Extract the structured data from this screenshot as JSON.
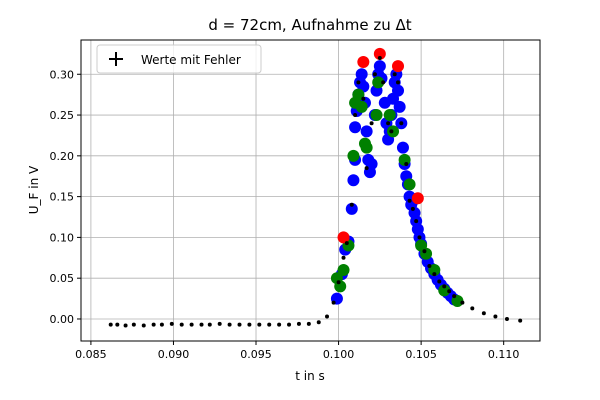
{
  "chart_data": {
    "type": "scatter",
    "title": "d = 72cm, Aufnahme zu Δt",
    "xlabel": "t in s",
    "ylabel": "U_F in V",
    "xlim": [
      0.0844,
      0.1122
    ],
    "ylim": [
      -0.027,
      0.342
    ],
    "xticks": [
      "0.085",
      "0.090",
      "0.095",
      "0.100",
      "0.105",
      "0.110"
    ],
    "xtick_values": [
      0.085,
      0.09,
      0.095,
      0.1,
      0.105,
      0.11
    ],
    "yticks": [
      "0.00",
      "0.05",
      "0.10",
      "0.15",
      "0.20",
      "0.25",
      "0.30"
    ],
    "ytick_values": [
      0.0,
      0.05,
      0.1,
      0.15,
      0.2,
      0.25,
      0.3
    ],
    "grid": true,
    "legend": {
      "position": "top-left",
      "entries": [
        "Werte mit Fehler"
      ]
    },
    "colors": {
      "red": "#ff0000",
      "blue": "#0000ff",
      "green": "#008000",
      "black": "#000000"
    },
    "series": [
      {
        "name": "Werte mit Fehler",
        "key": "error",
        "marker": "plus",
        "color": "#000000",
        "x": [
          0.0862,
          0.0866,
          0.0871,
          0.0876,
          0.0882,
          0.0888,
          0.0893,
          0.0899,
          0.0905,
          0.0911,
          0.0917,
          0.0922,
          0.0928,
          0.0934,
          0.094,
          0.0946,
          0.0952,
          0.0958,
          0.0964,
          0.097,
          0.0976,
          0.0982,
          0.0988,
          0.0993,
          0.0997,
          0.1,
          0.1003,
          0.1005,
          0.1008,
          0.101,
          0.1012,
          0.1015,
          0.1017,
          0.102,
          0.1022,
          0.1025,
          0.1027,
          0.103,
          0.1032,
          0.1034,
          0.1036,
          0.1038,
          0.1041,
          0.1043,
          0.1045,
          0.1047,
          0.1049,
          0.1052,
          0.1055,
          0.1058,
          0.1061,
          0.1064,
          0.1067,
          0.107,
          0.1075,
          0.1081,
          0.1088,
          0.1095,
          0.1102,
          0.111
        ],
        "y": [
          -0.007,
          -0.007,
          -0.008,
          -0.007,
          -0.008,
          -0.007,
          -0.007,
          -0.006,
          -0.007,
          -0.007,
          -0.007,
          -0.007,
          -0.006,
          -0.007,
          -0.007,
          -0.007,
          -0.007,
          -0.007,
          -0.007,
          -0.007,
          -0.006,
          -0.006,
          -0.004,
          0.003,
          0.02,
          0.045,
          0.075,
          0.093,
          0.14,
          0.25,
          0.29,
          0.27,
          0.185,
          0.24,
          0.3,
          0.32,
          0.29,
          0.24,
          0.23,
          0.3,
          0.29,
          0.24,
          0.19,
          0.145,
          0.135,
          0.12,
          0.1,
          0.083,
          0.065,
          0.055,
          0.046,
          0.04,
          0.034,
          0.028,
          0.02,
          0.013,
          0.007,
          0.003,
          0.0,
          -0.002
        ]
      },
      {
        "name": "",
        "key": "blue",
        "marker": "circle",
        "color": "#0000ff",
        "x": [
          0.0999,
          0.1002,
          0.1004,
          0.1006,
          0.1008,
          0.1009,
          0.101,
          0.101,
          0.1011,
          0.1012,
          0.1013,
          0.1014,
          0.1015,
          0.1016,
          0.1017,
          0.1018,
          0.1019,
          0.102,
          0.1022,
          0.1023,
          0.1024,
          0.1025,
          0.1026,
          0.1028,
          0.1029,
          0.103,
          0.1031,
          0.1032,
          0.1033,
          0.1034,
          0.1035,
          0.1036,
          0.1037,
          0.1038,
          0.1039,
          0.104,
          0.1041,
          0.1042,
          0.1043,
          0.1044,
          0.1045,
          0.1046,
          0.1047,
          0.1048,
          0.1049,
          0.105,
          0.1052,
          0.1054,
          0.1056,
          0.1058,
          0.106,
          0.1062,
          0.1064,
          0.1066,
          0.1068,
          0.107
        ],
        "y": [
          0.025,
          0.055,
          0.085,
          0.095,
          0.135,
          0.17,
          0.195,
          0.235,
          0.255,
          0.275,
          0.29,
          0.3,
          0.285,
          0.265,
          0.23,
          0.195,
          0.18,
          0.19,
          0.25,
          0.28,
          0.3,
          0.31,
          0.295,
          0.265,
          0.24,
          0.22,
          0.23,
          0.25,
          0.27,
          0.29,
          0.3,
          0.28,
          0.26,
          0.24,
          0.21,
          0.19,
          0.175,
          0.165,
          0.15,
          0.14,
          0.145,
          0.13,
          0.12,
          0.11,
          0.1,
          0.092,
          0.08,
          0.07,
          0.062,
          0.055,
          0.048,
          0.042,
          0.037,
          0.032,
          0.028,
          0.024
        ]
      },
      {
        "name": "",
        "key": "green",
        "marker": "circle",
        "color": "#008000",
        "x": [
          0.0999,
          0.1001,
          0.1003,
          0.1006,
          0.1009,
          0.101,
          0.1012,
          0.1014,
          0.1016,
          0.1017,
          0.1023,
          0.1024,
          0.1031,
          0.1033,
          0.104,
          0.1043,
          0.105,
          0.1053,
          0.1058,
          0.1064,
          0.1072
        ],
        "y": [
          0.05,
          0.04,
          0.06,
          0.09,
          0.2,
          0.265,
          0.275,
          0.26,
          0.215,
          0.21,
          0.25,
          0.29,
          0.25,
          0.23,
          0.195,
          0.165,
          0.09,
          0.08,
          0.06,
          0.035,
          0.022
        ]
      },
      {
        "name": "",
        "key": "red",
        "marker": "circle",
        "color": "#ff0000",
        "x": [
          0.1003,
          0.1015,
          0.1025,
          0.1036,
          0.1048
        ],
        "y": [
          0.1,
          0.315,
          0.325,
          0.31,
          0.148
        ]
      }
    ]
  }
}
